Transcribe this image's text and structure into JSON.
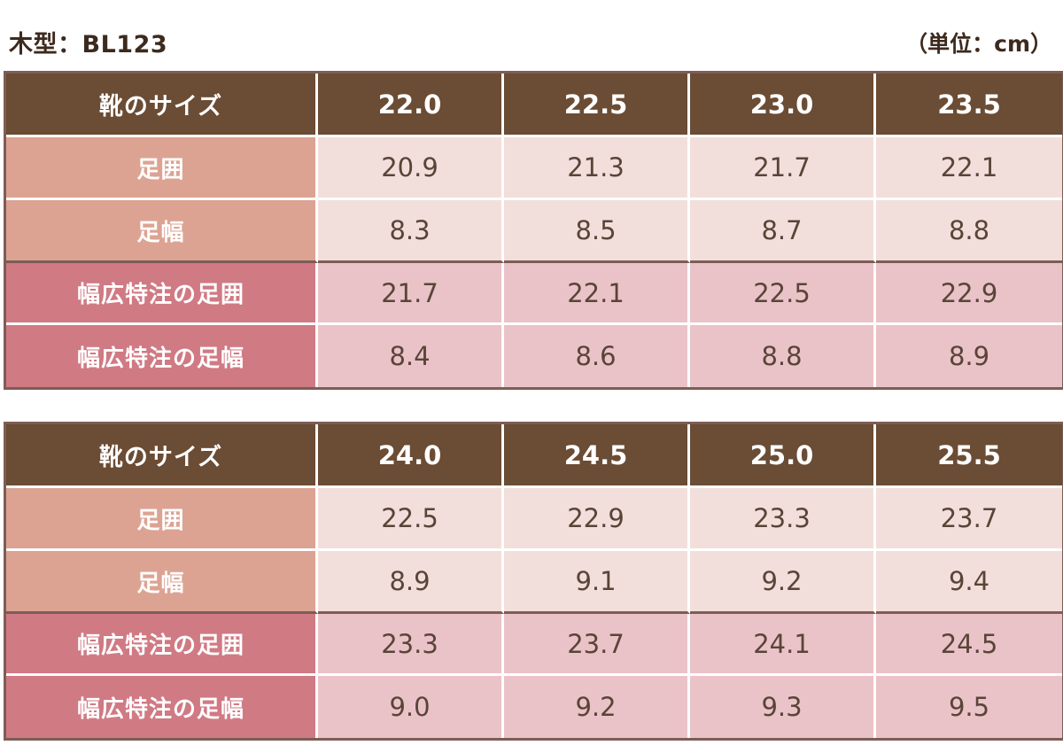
{
  "header": {
    "model_title": "木型：BL123",
    "unit_label": "（単位：cm）"
  },
  "colors": {
    "header_bg": "#6b4c34",
    "std_label_bg": "#dca393",
    "std_cell_bg": "#f2dfdb",
    "wide_label_bg": "#d07a84",
    "wide_cell_bg": "#eac3c8",
    "border": "#7c5d56",
    "text_dark": "#3d2a1e"
  },
  "tables": [
    {
      "header_label": "靴のサイズ",
      "sizes": [
        "22.0",
        "22.5",
        "23.0",
        "23.5"
      ],
      "rows": [
        {
          "label": "足囲",
          "values": [
            "20.9",
            "21.3",
            "21.7",
            "22.1"
          ]
        },
        {
          "label": "足幅",
          "values": [
            "8.3",
            "8.5",
            "8.7",
            "8.8"
          ]
        },
        {
          "label": "幅広特注の足囲",
          "values": [
            "21.7",
            "22.1",
            "22.5",
            "22.9"
          ]
        },
        {
          "label": "幅広特注の足幅",
          "values": [
            "8.4",
            "8.6",
            "8.8",
            "8.9"
          ]
        }
      ]
    },
    {
      "header_label": "靴のサイズ",
      "sizes": [
        "24.0",
        "24.5",
        "25.0",
        "25.5"
      ],
      "rows": [
        {
          "label": "足囲",
          "values": [
            "22.5",
            "22.9",
            "23.3",
            "23.7"
          ]
        },
        {
          "label": "足幅",
          "values": [
            "8.9",
            "9.1",
            "9.2",
            "9.4"
          ]
        },
        {
          "label": "幅広特注の足囲",
          "values": [
            "23.3",
            "23.7",
            "24.1",
            "24.5"
          ]
        },
        {
          "label": "幅広特注の足幅",
          "values": [
            "9.0",
            "9.2",
            "9.3",
            "9.5"
          ]
        }
      ]
    }
  ]
}
